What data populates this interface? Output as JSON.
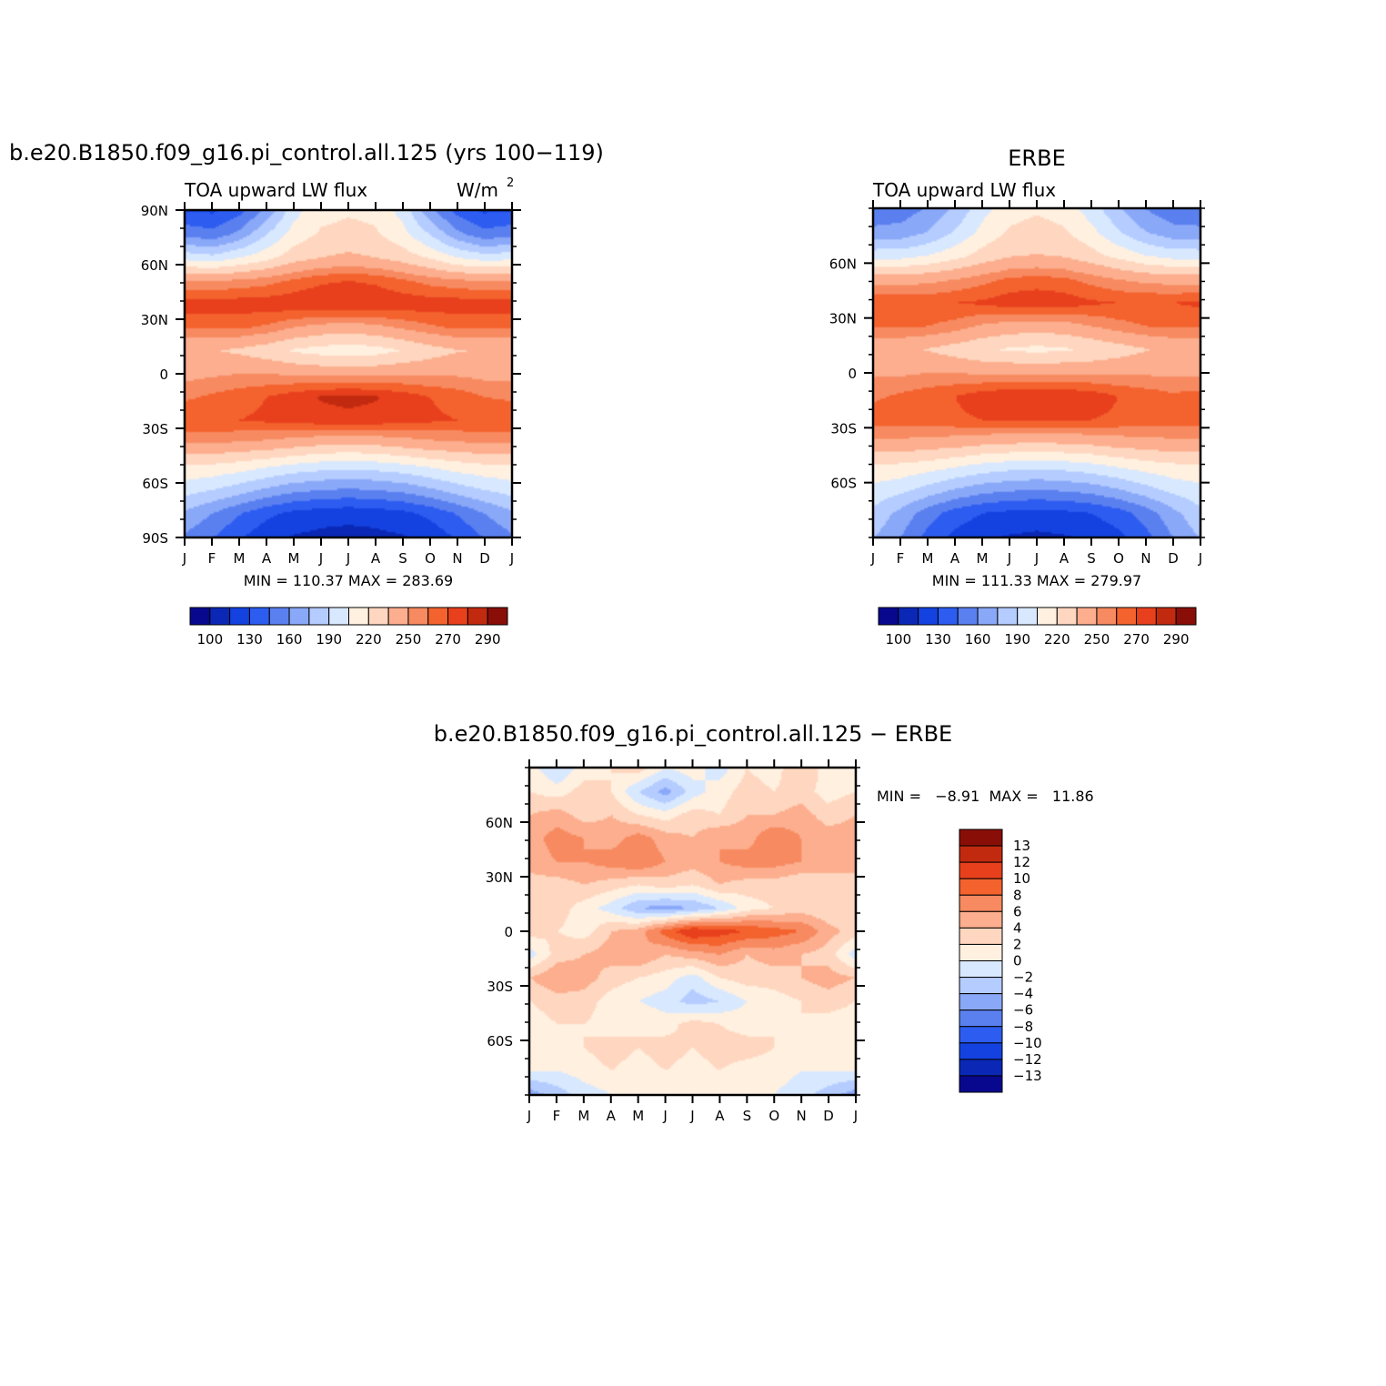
{
  "chart_data": [
    {
      "type": "heatmap",
      "title": "b.e20.B1850.f09_g16.pi_control.all.125 (yrs 100−119)",
      "left_label": "TOA upward LW flux",
      "right_label": "W/m",
      "right_label_sup": "2",
      "x_tick_labels": [
        "J",
        "F",
        "M",
        "A",
        "M",
        "J",
        "J",
        "A",
        "S",
        "O",
        "N",
        "D",
        "J"
      ],
      "y_tick_labels": [
        "90N",
        "60N",
        "30N",
        "0",
        "30S",
        "60S",
        "90S"
      ],
      "y_tick_values": [
        90,
        60,
        30,
        0,
        -30,
        -60,
        -90
      ],
      "ylim": [
        -90,
        90
      ],
      "stats_text": "MIN = 110.37 MAX = 283.69",
      "min": 110.37,
      "max": 283.69,
      "colorbar": {
        "orientation": "horizontal",
        "colors": [
          "#08088f",
          "#0a28b5",
          "#1442e0",
          "#2d5cf0",
          "#5a80f0",
          "#8aa8f8",
          "#b4ccff",
          "#d8e8ff",
          "#fff0e0",
          "#ffd6bf",
          "#fcae8e",
          "#f78a60",
          "#f4622e",
          "#e8401c",
          "#c22a10",
          "#8a0e08"
        ],
        "labels": [
          "100",
          "130",
          "160",
          "190",
          "220",
          "250",
          "270",
          "290"
        ]
      },
      "field": [
        [
          130,
          128,
          140,
          165,
          200,
          215,
          218,
          216,
          200,
          165,
          140,
          128,
          130
        ],
        [
          155,
          150,
          165,
          190,
          212,
          222,
          225,
          222,
          210,
          190,
          165,
          150,
          155
        ],
        [
          200,
          195,
          205,
          215,
          228,
          235,
          238,
          235,
          228,
          218,
          205,
          198,
          200
        ],
        [
          250,
          250,
          252,
          256,
          262,
          268,
          270,
          268,
          262,
          256,
          252,
          250,
          250
        ],
        [
          275,
          275,
          276,
          276,
          278,
          280,
          280,
          279,
          277,
          276,
          276,
          275,
          275
        ],
        [
          262,
          262,
          262,
          258,
          250,
          245,
          243,
          246,
          252,
          258,
          262,
          262,
          262
        ],
        [
          236,
          236,
          232,
          226,
          218,
          214,
          212,
          214,
          220,
          228,
          234,
          236,
          236
        ],
        [
          246,
          248,
          250,
          250,
          248,
          246,
          246,
          246,
          248,
          248,
          248,
          246,
          246
        ],
        [
          258,
          262,
          266,
          270,
          276,
          281,
          283,
          281,
          276,
          270,
          266,
          260,
          258
        ],
        [
          270,
          270,
          270,
          272,
          274,
          276,
          277,
          276,
          274,
          272,
          270,
          270,
          270
        ],
        [
          250,
          250,
          248,
          246,
          242,
          238,
          236,
          238,
          242,
          246,
          248,
          250,
          250
        ],
        [
          218,
          216,
          212,
          206,
          200,
          196,
          194,
          196,
          200,
          206,
          212,
          216,
          218
        ],
        [
          196,
          190,
          182,
          172,
          164,
          160,
          158,
          160,
          164,
          172,
          182,
          190,
          196
        ],
        [
          172,
          160,
          146,
          134,
          126,
          122,
          120,
          122,
          126,
          134,
          146,
          160,
          172
        ],
        [
          158,
          146,
          132,
          120,
          114,
          111,
          110,
          111,
          114,
          120,
          132,
          146,
          158
        ]
      ]
    },
    {
      "type": "heatmap",
      "title": "ERBE",
      "left_label": "TOA upward LW flux",
      "x_tick_labels": [
        "J",
        "F",
        "M",
        "A",
        "M",
        "J",
        "J",
        "A",
        "S",
        "O",
        "N",
        "D",
        "J"
      ],
      "y_tick_labels": [
        "60N",
        "30N",
        "0",
        "30S",
        "60S"
      ],
      "y_tick_values": [
        60,
        30,
        0,
        -30,
        -60
      ],
      "ylim": [
        -90,
        90
      ],
      "stats_text": "MIN = 111.33 MAX = 279.97",
      "min": 111.33,
      "max": 279.97,
      "colorbar": {
        "orientation": "horizontal",
        "colors": [
          "#08088f",
          "#0a28b5",
          "#1442e0",
          "#2d5cf0",
          "#5a80f0",
          "#8aa8f8",
          "#b4ccff",
          "#d8e8ff",
          "#fff0e0",
          "#ffd6bf",
          "#fcae8e",
          "#f78a60",
          "#f4622e",
          "#e8401c",
          "#c22a10",
          "#8a0e08"
        ],
        "labels": [
          "100",
          "130",
          "160",
          "190",
          "220",
          "250",
          "270",
          "290"
        ]
      },
      "field": [
        [
          150,
          152,
          162,
          178,
          200,
          214,
          218,
          214,
          198,
          178,
          160,
          150,
          150
        ],
        [
          164,
          166,
          176,
          192,
          210,
          222,
          226,
          222,
          210,
          192,
          176,
          166,
          164
        ],
        [
          200,
          200,
          206,
          215,
          226,
          234,
          236,
          234,
          226,
          216,
          206,
          200,
          200
        ],
        [
          244,
          244,
          246,
          250,
          256,
          262,
          264,
          262,
          256,
          250,
          246,
          244,
          244
        ],
        [
          270,
          268,
          268,
          270,
          272,
          276,
          278,
          276,
          272,
          270,
          270,
          270,
          272
        ],
        [
          262,
          262,
          260,
          256,
          248,
          244,
          242,
          244,
          250,
          256,
          260,
          262,
          262
        ],
        [
          238,
          238,
          234,
          228,
          222,
          218,
          216,
          218,
          222,
          228,
          234,
          238,
          238
        ],
        [
          248,
          248,
          250,
          250,
          248,
          248,
          248,
          248,
          248,
          248,
          248,
          248,
          248
        ],
        [
          258,
          262,
          266,
          270,
          276,
          279,
          280,
          279,
          276,
          270,
          266,
          262,
          264
        ],
        [
          266,
          266,
          266,
          268,
          270,
          272,
          272,
          272,
          270,
          268,
          266,
          266,
          266
        ],
        [
          246,
          246,
          244,
          242,
          238,
          236,
          234,
          236,
          238,
          242,
          244,
          246,
          246
        ],
        [
          218,
          216,
          212,
          206,
          200,
          196,
          194,
          196,
          200,
          206,
          212,
          216,
          218
        ],
        [
          200,
          194,
          184,
          174,
          166,
          162,
          160,
          162,
          166,
          174,
          184,
          194,
          200
        ],
        [
          186,
          170,
          152,
          138,
          130,
          126,
          124,
          126,
          130,
          138,
          152,
          170,
          186
        ],
        [
          176,
          160,
          140,
          126,
          118,
          114,
          112,
          114,
          118,
          126,
          140,
          160,
          176
        ]
      ]
    },
    {
      "type": "heatmap",
      "title": "b.e20.B1850.f09_g16.pi_control.all.125 − ERBE",
      "x_tick_labels": [
        "J",
        "F",
        "M",
        "A",
        "M",
        "J",
        "J",
        "A",
        "S",
        "O",
        "N",
        "D",
        "J"
      ],
      "y_tick_labels": [
        "60N",
        "30N",
        "0",
        "30S",
        "60S"
      ],
      "y_tick_values": [
        60,
        30,
        0,
        -30,
        -60
      ],
      "ylim": [
        -90,
        90
      ],
      "stats_text": "MIN =   −8.91  MAX =   11.86",
      "min": -8.91,
      "max": 11.86,
      "colorbar": {
        "orientation": "vertical",
        "colors": [
          "#8a0e08",
          "#c22a10",
          "#e8401c",
          "#f4622e",
          "#f78a60",
          "#fcae8e",
          "#ffd6bf",
          "#fff0e0",
          "#d8e8ff",
          "#b4ccff",
          "#8aa8f8",
          "#5a80f0",
          "#2d5cf0",
          "#1442e0",
          "#0a28b5",
          "#08088f"
        ],
        "labels": [
          "13",
          "12",
          "10",
          "8",
          "6",
          "4",
          "2",
          "0",
          "−2",
          "−4",
          "−6",
          "−8",
          "−10",
          "−12",
          "−13"
        ]
      },
      "field": [
        [
          1,
          -2,
          1,
          2,
          3,
          0,
          1,
          -1,
          2,
          1,
          4,
          1,
          1
        ],
        [
          2,
          1,
          3,
          2,
          -2,
          -5,
          -1,
          1,
          3,
          2,
          3,
          1,
          2
        ],
        [
          4,
          5,
          3,
          4,
          2,
          1,
          3,
          2,
          4,
          4,
          5,
          3,
          4
        ],
        [
          5,
          7,
          6,
          5,
          7,
          5,
          4,
          6,
          5,
          8,
          6,
          5,
          5
        ],
        [
          5,
          6,
          6,
          7,
          8,
          6,
          5,
          6,
          7,
          7,
          6,
          5,
          5
        ],
        [
          3,
          3,
          4,
          3,
          2,
          3,
          2,
          4,
          3,
          3,
          2,
          3,
          3
        ],
        [
          2,
          3,
          1,
          -1,
          -4,
          -5,
          -4,
          -2,
          1,
          2,
          3,
          2,
          2
        ],
        [
          3,
          2,
          1,
          4,
          5,
          9,
          12,
          11,
          10,
          9,
          8,
          5,
          3
        ],
        [
          -1,
          3,
          4,
          5,
          6,
          4,
          5,
          6,
          4,
          5,
          4,
          3,
          -1
        ],
        [
          4,
          6,
          5,
          3,
          2,
          1,
          -1,
          2,
          3,
          3,
          4,
          5,
          4
        ],
        [
          2,
          3,
          3,
          1,
          0,
          -1,
          -3,
          -2,
          0,
          1,
          2,
          3,
          2
        ],
        [
          1,
          2,
          2,
          1,
          2,
          1,
          3,
          2,
          1,
          2,
          2,
          1,
          1
        ],
        [
          1,
          1,
          2,
          3,
          2,
          3,
          2,
          3,
          3,
          2,
          1,
          1,
          1
        ],
        [
          0,
          0,
          1,
          2,
          1,
          2,
          1,
          2,
          1,
          1,
          0,
          0,
          0
        ],
        [
          -5,
          -3,
          -1,
          0,
          0,
          0,
          0,
          0,
          0,
          0,
          -1,
          -3,
          -5
        ]
      ]
    }
  ]
}
